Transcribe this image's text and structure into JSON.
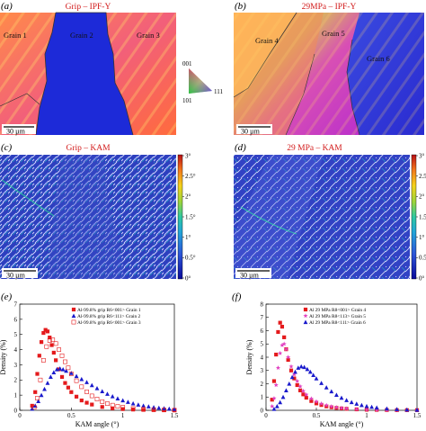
{
  "panels": {
    "a": {
      "letter": "(a)",
      "title": "Grip – IPF-Y",
      "grains": [
        "Grain 1",
        "Grain 2",
        "Grain 3"
      ],
      "scale": "30 µm"
    },
    "b": {
      "letter": "(b)",
      "title": "29MPa – IPF-Y",
      "grains": [
        "Grain 4",
        "Grain 5",
        "Grain 6"
      ],
      "scale": "30 µm"
    },
    "c": {
      "letter": "(c)",
      "title": "Grip – KAM",
      "scale": "30 µm"
    },
    "d": {
      "letter": "(d)",
      "title": "29 MPa – KAM",
      "scale": "30 µm"
    },
    "e": {
      "letter": "(e)"
    },
    "f": {
      "letter": "(f)"
    }
  },
  "ipf_key": {
    "labels": [
      "001",
      "101",
      "111"
    ]
  },
  "kam_colorbar": {
    "labels": [
      "3°",
      "2.5°",
      "2°",
      "1.5°",
      "1°",
      "0.5°",
      "0°"
    ]
  },
  "colors": {
    "title_red": "#d21a1a",
    "grain1": "#e8202a",
    "grain2": "#1d2ad8",
    "grain3": "#e8202a",
    "grain4": "#d42aa8",
    "grain5": "#e0208a",
    "grain6": "#2f3fd0"
  },
  "chart_data": [
    {
      "type": "scatter",
      "panel": "e",
      "xlabel": "KAM angle (°)",
      "ylabel": "Density (%)",
      "xlim": [
        0,
        1.5
      ],
      "ylim": [
        0,
        7
      ],
      "xticks": [
        "0",
        "0.5",
        "1",
        "1.5"
      ],
      "yticks": [
        "0",
        "1",
        "2",
        "3",
        "4",
        "5",
        "6",
        "7"
      ],
      "legend_position": "top-right",
      "series": [
        {
          "name": "Al-99.8% grip R6<001> Grain 1",
          "marker": "square-filled",
          "color": "#e41a1c",
          "x": [
            0.12,
            0.15,
            0.17,
            0.19,
            0.21,
            0.23,
            0.25,
            0.27,
            0.29,
            0.31,
            0.33,
            0.35,
            0.38,
            0.41,
            0.44,
            0.47,
            0.5,
            0.55,
            0.6,
            0.65,
            0.7,
            0.8,
            0.9,
            1.0,
            1.1,
            1.2,
            1.3,
            1.4,
            1.5
          ],
          "y": [
            0.3,
            1.2,
            2.4,
            3.6,
            4.5,
            5.1,
            5.3,
            5.2,
            4.8,
            4.3,
            3.8,
            3.3,
            2.7,
            2.2,
            1.8,
            1.5,
            1.2,
            0.9,
            0.65,
            0.5,
            0.38,
            0.22,
            0.13,
            0.08,
            0.05,
            0.03,
            0.02,
            0.01,
            0.01
          ]
        },
        {
          "name": "Al-99.8% grip R6<111> Grain 2",
          "marker": "triangle-filled",
          "color": "#1a1acc",
          "x": [
            0.12,
            0.15,
            0.18,
            0.21,
            0.24,
            0.27,
            0.3,
            0.33,
            0.36,
            0.39,
            0.42,
            0.45,
            0.5,
            0.55,
            0.6,
            0.65,
            0.7,
            0.75,
            0.8,
            0.85,
            0.9,
            0.95,
            1.0,
            1.05,
            1.1,
            1.15,
            1.2,
            1.25,
            1.3,
            1.35,
            1.4,
            1.45,
            1.5
          ],
          "y": [
            0.1,
            0.3,
            0.6,
            1.0,
            1.4,
            1.8,
            2.2,
            2.5,
            2.7,
            2.75,
            2.7,
            2.6,
            2.45,
            2.25,
            2.05,
            1.85,
            1.65,
            1.45,
            1.25,
            1.08,
            0.92,
            0.78,
            0.65,
            0.55,
            0.45,
            0.37,
            0.3,
            0.25,
            0.2,
            0.16,
            0.13,
            0.1,
            0.08
          ]
        },
        {
          "name": "Al-99.8% grip R6<001> Grain 3",
          "marker": "square-open",
          "color": "#e41a1c",
          "x": [
            0.14,
            0.17,
            0.2,
            0.23,
            0.26,
            0.29,
            0.32,
            0.35,
            0.38,
            0.41,
            0.44,
            0.47,
            0.5,
            0.55,
            0.6,
            0.65,
            0.7,
            0.75,
            0.8,
            0.85,
            0.9,
            0.95,
            1.0,
            1.1,
            1.2,
            1.3,
            1.4,
            1.5
          ],
          "y": [
            0.2,
            0.8,
            2.0,
            3.3,
            4.2,
            4.6,
            4.65,
            4.4,
            4.0,
            3.6,
            3.2,
            2.8,
            2.4,
            1.95,
            1.55,
            1.22,
            0.95,
            0.74,
            0.57,
            0.44,
            0.34,
            0.26,
            0.2,
            0.12,
            0.07,
            0.04,
            0.02,
            0.01
          ]
        }
      ]
    },
    {
      "type": "scatter",
      "panel": "f",
      "xlabel": "KAM angle (°)",
      "ylabel": "Density (%)",
      "xlim": [
        0,
        1.5
      ],
      "ylim": [
        0,
        8
      ],
      "xticks": [
        "0",
        "0.5",
        "1",
        "1.5"
      ],
      "yticks": [
        "0",
        "1",
        "2",
        "3",
        "4",
        "5",
        "6",
        "7",
        "8"
      ],
      "legend_position": "top-right",
      "series": [
        {
          "name": "Al 29 MPa R8<001> Grain 4",
          "marker": "square-filled",
          "color": "#e41a1c",
          "x": [
            0.06,
            0.08,
            0.1,
            0.12,
            0.14,
            0.16,
            0.18,
            0.2,
            0.22,
            0.25,
            0.28,
            0.31,
            0.34,
            0.37,
            0.4,
            0.45,
            0.5,
            0.55,
            0.6,
            0.65,
            0.7,
            0.75,
            0.8,
            0.9,
            1.0,
            1.1,
            1.2,
            1.3,
            1.4,
            1.5
          ],
          "y": [
            0.8,
            2.2,
            4.2,
            5.9,
            6.6,
            6.3,
            5.5,
            4.6,
            3.8,
            3.0,
            2.4,
            1.9,
            1.5,
            1.2,
            0.95,
            0.7,
            0.52,
            0.4,
            0.3,
            0.23,
            0.18,
            0.14,
            0.11,
            0.07,
            0.04,
            0.03,
            0.02,
            0.01,
            0.01,
            0.01
          ]
        },
        {
          "name": "Al 29 MPa R8<113> Grain 5",
          "marker": "star",
          "color": "#e040c0",
          "x": [
            0.06,
            0.08,
            0.1,
            0.12,
            0.14,
            0.16,
            0.18,
            0.2,
            0.22,
            0.25,
            0.28,
            0.31,
            0.34,
            0.37,
            0.4,
            0.45,
            0.5,
            0.55,
            0.6,
            0.65,
            0.7,
            0.75,
            0.8,
            0.9,
            1.0,
            1.1,
            1.2,
            1.3,
            1.4,
            1.5
          ],
          "y": [
            0.3,
            0.9,
            1.9,
            3.2,
            4.3,
            4.9,
            5.0,
            4.6,
            4.0,
            3.3,
            2.7,
            2.2,
            1.8,
            1.45,
            1.18,
            0.88,
            0.66,
            0.5,
            0.38,
            0.29,
            0.22,
            0.17,
            0.13,
            0.08,
            0.05,
            0.03,
            0.02,
            0.01,
            0.01,
            0.01
          ]
        },
        {
          "name": "Al 29 MPa R8<111> Grain 6",
          "marker": "triangle-filled",
          "color": "#1a1acc",
          "x": [
            0.08,
            0.11,
            0.14,
            0.17,
            0.2,
            0.23,
            0.26,
            0.29,
            0.32,
            0.35,
            0.38,
            0.41,
            0.44,
            0.47,
            0.5,
            0.55,
            0.6,
            0.65,
            0.7,
            0.75,
            0.8,
            0.85,
            0.9,
            0.95,
            1.0,
            1.05,
            1.1,
            1.2,
            1.3,
            1.4,
            1.5
          ],
          "y": [
            0.1,
            0.3,
            0.6,
            1.0,
            1.5,
            2.0,
            2.5,
            2.9,
            3.2,
            3.3,
            3.25,
            3.1,
            2.9,
            2.65,
            2.4,
            2.05,
            1.72,
            1.42,
            1.16,
            0.94,
            0.76,
            0.61,
            0.49,
            0.39,
            0.31,
            0.25,
            0.2,
            0.13,
            0.08,
            0.05,
            0.03
          ]
        }
      ]
    }
  ]
}
